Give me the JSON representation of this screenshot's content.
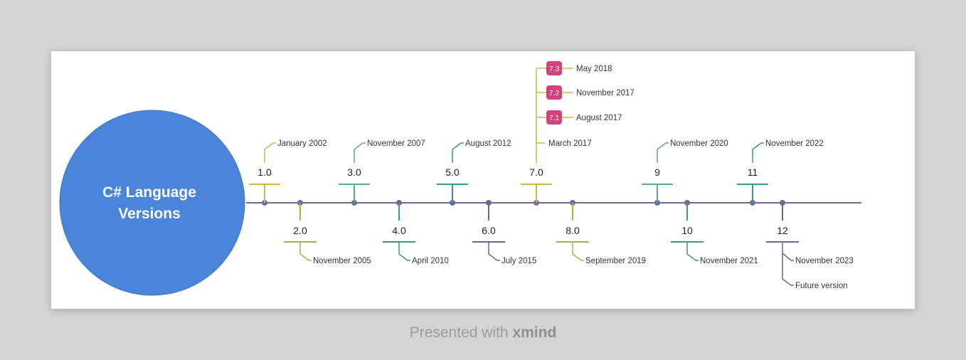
{
  "title": "C# Language Versions",
  "title_lines": [
    "C# Language",
    "Versions"
  ],
  "footer": {
    "prefix": "Presented with ",
    "brand": "xmind"
  },
  "colors": {
    "background": "#d4d4d4",
    "center": "#4a85da",
    "axis": "#6f6a97",
    "gold": "#cfb54c",
    "green": "#5aab86",
    "olive": "#a7b04b",
    "teal": "#3c948e",
    "purple": "#6a6596",
    "badge": "#d4427d"
  },
  "versions": [
    {
      "version": "1.0",
      "date": "January 2002",
      "side": "top",
      "color": "gold"
    },
    {
      "version": "2.0",
      "date": "November 2005",
      "side": "bottom",
      "color": "olive"
    },
    {
      "version": "3.0",
      "date": "November 2007",
      "side": "top",
      "color": "green"
    },
    {
      "version": "4.0",
      "date": "April 2010",
      "side": "bottom",
      "color": "teal"
    },
    {
      "version": "5.0",
      "date": "August 2012",
      "side": "top",
      "color": "teal"
    },
    {
      "version": "6.0",
      "date": "July 2015",
      "side": "bottom",
      "color": "purple"
    },
    {
      "version": "7.0",
      "date": "March 2017",
      "side": "top",
      "color": "gold",
      "minor": [
        {
          "version": "7.1",
          "date": "August 2017"
        },
        {
          "version": "7.2",
          "date": "November 2017"
        },
        {
          "version": "7.3",
          "date": "May 2018"
        }
      ]
    },
    {
      "version": "8.0",
      "date": "September 2019",
      "side": "bottom",
      "color": "olive"
    },
    {
      "version": "9",
      "date": "November 2020",
      "side": "top",
      "color": "green"
    },
    {
      "version": "10",
      "date": "November 2021",
      "side": "bottom",
      "color": "teal"
    },
    {
      "version": "11",
      "date": "November 2022",
      "side": "top",
      "color": "teal"
    },
    {
      "version": "12",
      "date": "November 2023",
      "side": "bottom",
      "color": "purple",
      "extra": "Future version"
    }
  ]
}
